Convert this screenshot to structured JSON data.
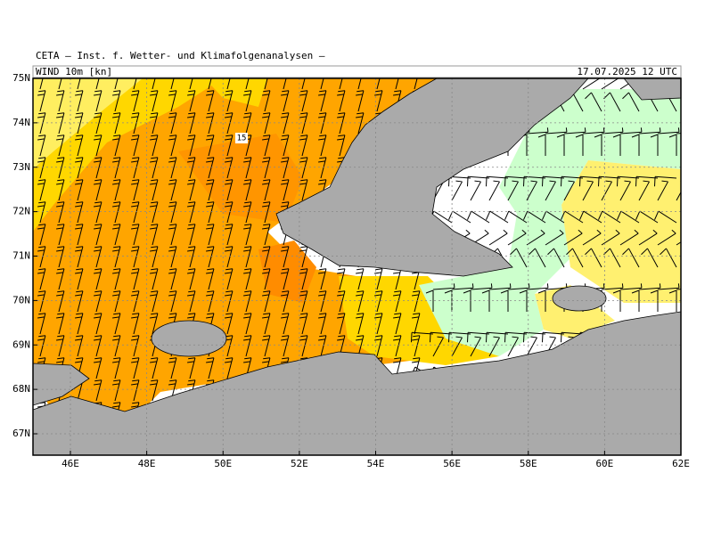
{
  "header": {
    "title": "CETA — Inst. f. Wetter- und Klimafolgenanalysen —",
    "field": "WIND 10m [kn]",
    "datetime": "17.07.2025 12 UTC"
  },
  "axes": {
    "lat_labels": [
      "67N",
      "68N",
      "69N",
      "70N",
      "71N",
      "72N",
      "73N",
      "74N",
      "75N"
    ],
    "lon_labels": [
      "46E",
      "48E",
      "50E",
      "52E",
      "54E",
      "56E",
      "58E",
      "60E",
      "62E"
    ]
  },
  "contour_labels": [
    "15"
  ]
}
